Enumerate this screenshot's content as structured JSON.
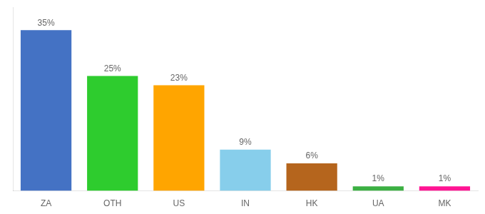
{
  "chart_data": {
    "type": "bar",
    "categories": [
      "ZA",
      "OTH",
      "US",
      "IN",
      "HK",
      "UA",
      "MK"
    ],
    "values": [
      35,
      25,
      23,
      9,
      6,
      1,
      1
    ],
    "value_labels": [
      "35%",
      "25%",
      "23%",
      "9%",
      "6%",
      "1%",
      "1%"
    ],
    "colors": [
      "#4472c4",
      "#2ecc2e",
      "#ffa500",
      "#87ceeb",
      "#b5651d",
      "#3cb043",
      "#ff1493"
    ],
    "ylim": [
      0,
      40
    ],
    "grid": false,
    "data_labels": true,
    "tick_labels": "x"
  }
}
